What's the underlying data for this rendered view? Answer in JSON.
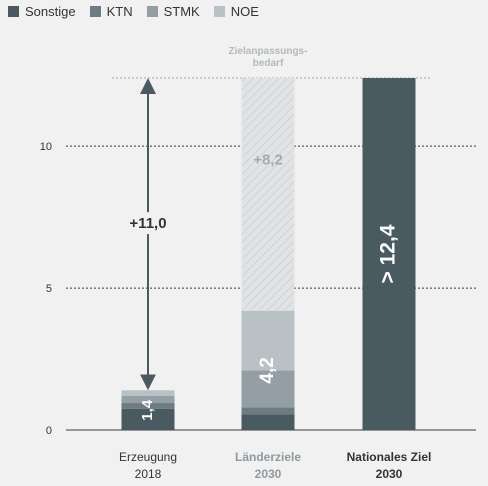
{
  "colors": {
    "sonstige": "#4a5a61",
    "ktn": "#6d7c83",
    "stmk": "#949fa5",
    "noe": "#b9c1c5",
    "gap_fill": "#e1e3e4",
    "gap_label": "#a4abaf",
    "grid": "#3a3a3a",
    "text": "#333333",
    "bold_label_2030": "#8f999e",
    "white": "#ffffff"
  },
  "chart_data": {
    "type": "bar",
    "stacked": true,
    "categories": [
      {
        "line1": "Erzeugung",
        "line2": "2018",
        "style": "normal"
      },
      {
        "line1": "Länderziele",
        "line2": "2030",
        "style": "bold-grey"
      },
      {
        "line1": "Nationales Ziel",
        "line2": "2030",
        "style": "bold-dark"
      }
    ],
    "series": [
      {
        "name": "Sonstige",
        "key": "sonstige",
        "values": [
          0.75,
          0.55,
          12.4
        ]
      },
      {
        "name": "KTN",
        "key": "ktn",
        "values": [
          0.2,
          0.25,
          0
        ]
      },
      {
        "name": "STMK",
        "key": "stmk",
        "values": [
          0.25,
          1.3,
          0
        ]
      },
      {
        "name": "NOE",
        "key": "noe",
        "values": [
          0.2,
          2.1,
          0
        ]
      }
    ],
    "gap": {
      "category_index": 1,
      "from": 4.2,
      "to": 12.4,
      "label": "+8,2",
      "annotation_line1": "Zielanpassungs-",
      "annotation_line2": "bedarf"
    },
    "bar_labels": [
      "1,4",
      "4,2",
      "> 12,4"
    ],
    "arrow": {
      "category_index": 0,
      "from": 1.4,
      "to": 12.4,
      "label": "+11,0"
    },
    "target_line": 12.4,
    "yticks": [
      0,
      5,
      10
    ],
    "ylim": [
      0,
      12.4
    ],
    "grid": true,
    "legend_position": "top-left"
  }
}
